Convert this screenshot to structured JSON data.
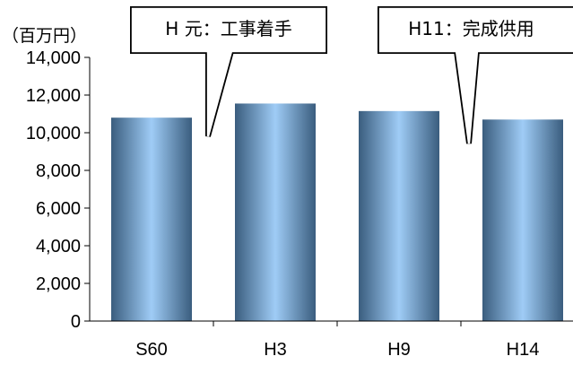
{
  "chart_data": {
    "type": "bar",
    "unit_label": "（百万円）",
    "categories": [
      "S60",
      "H3",
      "H9",
      "H14"
    ],
    "values": [
      10800,
      11550,
      11150,
      10700
    ],
    "ylim": [
      0,
      14000
    ],
    "y_ticks": [
      "0",
      "2,000",
      "4,000",
      "6,000",
      "8,000",
      "10,000",
      "12,000",
      "14,000"
    ],
    "y_tick_values": [
      0,
      2000,
      4000,
      6000,
      8000,
      10000,
      12000,
      14000
    ],
    "grid": false,
    "bar_gradient": [
      "#3a5d7e",
      "#9fccf6",
      "#3a5d7e"
    ],
    "annotations": [
      {
        "text": "H 元：工事着手",
        "points_to": "S60"
      },
      {
        "text": "H11：完成供用",
        "points_to": "H9"
      }
    ]
  }
}
